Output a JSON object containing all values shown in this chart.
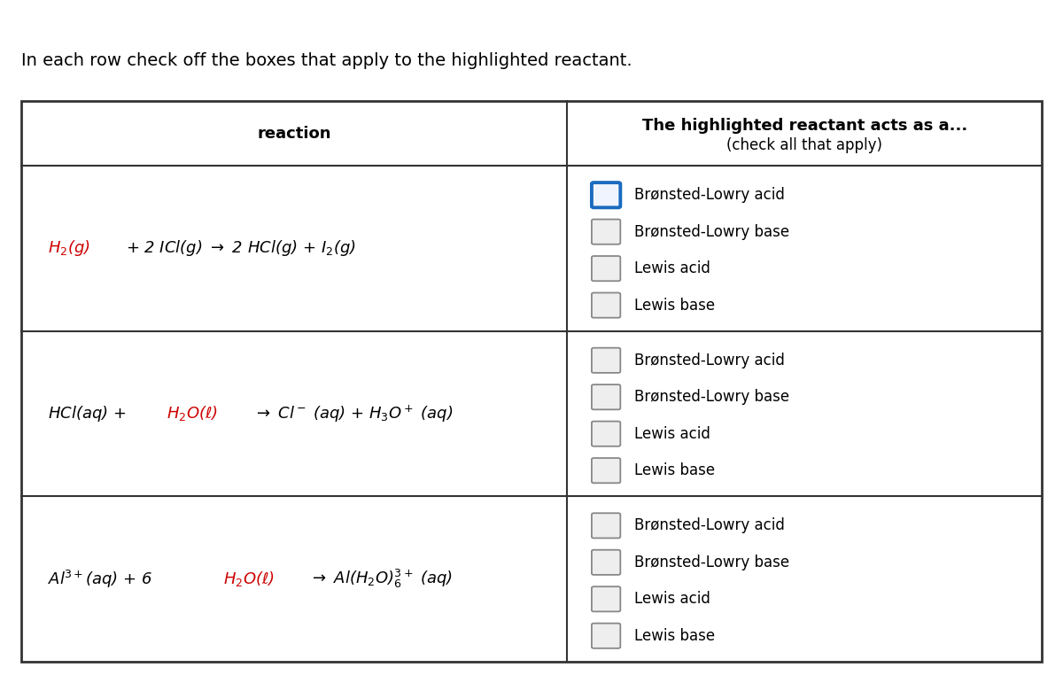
{
  "title_text": "In each row check off the boxes that apply to the highlighted reactant.",
  "header_left": "reaction",
  "header_right_line1": "The highlighted reactant acts as a...",
  "header_right_line2": "(check all that apply)",
  "col_split": 0.535,
  "options": [
    "Brønsted-Lowry acid",
    "Brønsted-Lowry base",
    "Lewis acid",
    "Lewis base"
  ],
  "checkbox_highlighted_row": 0,
  "checkbox_highlighted_index": 0,
  "bg_color": "#ffffff",
  "border_color": "#333333",
  "text_color": "#000000",
  "highlight_color": "#cc0000",
  "checkbox_border_normal": "#888888",
  "checkbox_border_highlighted": "#1a6bbf",
  "font_size_title": 14,
  "font_size_header": 13,
  "font_size_reaction": 13,
  "font_size_option": 12
}
